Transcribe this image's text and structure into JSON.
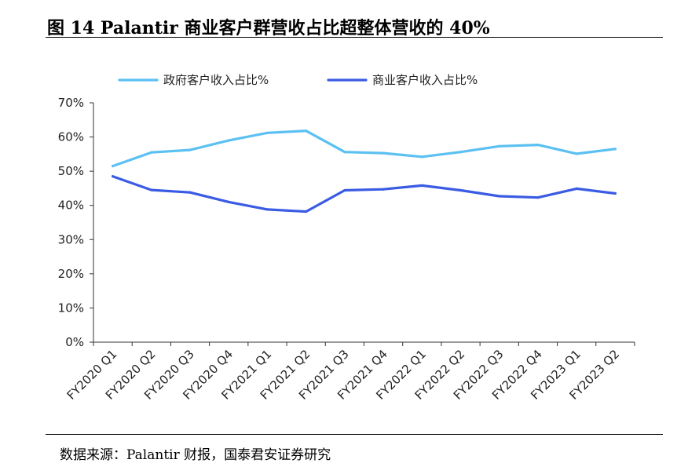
{
  "figure": {
    "title": "图 14 Palantir 商业客户群营收占比超整体营收的 40%",
    "source": "数据来源：Palantir 财报，国泰君安证券研究"
  },
  "chart_data": {
    "type": "line",
    "categories": [
      "FY2020 Q1",
      "FY2020 Q2",
      "FY2020 Q3",
      "FY2020 Q4",
      "FY2021 Q1",
      "FY2021 Q2",
      "FY2021 Q3",
      "FY2021 Q4",
      "FY2022 Q1",
      "FY2022 Q2",
      "FY2022 Q3",
      "FY2022 Q4",
      "FY2023 Q1",
      "FY2023 Q2"
    ],
    "series": [
      {
        "name": "政府客户收入占比%",
        "color": "#5BC0F2",
        "values": [
          51.5,
          55.5,
          56.2,
          59.0,
          61.2,
          61.8,
          55.6,
          55.3,
          54.2,
          55.6,
          57.3,
          57.7,
          55.1,
          56.5
        ]
      },
      {
        "name": "商业客户收入占比%",
        "color": "#3A5BE3",
        "values": [
          48.5,
          44.5,
          43.8,
          41.0,
          38.8,
          38.2,
          44.4,
          44.7,
          45.8,
          44.4,
          42.7,
          42.3,
          44.9,
          43.5
        ]
      }
    ],
    "ylim": [
      0,
      70
    ],
    "yticks": [
      "0%",
      "10%",
      "20%",
      "30%",
      "40%",
      "50%",
      "60%",
      "70%"
    ],
    "grid": false,
    "legend_position": "top"
  }
}
